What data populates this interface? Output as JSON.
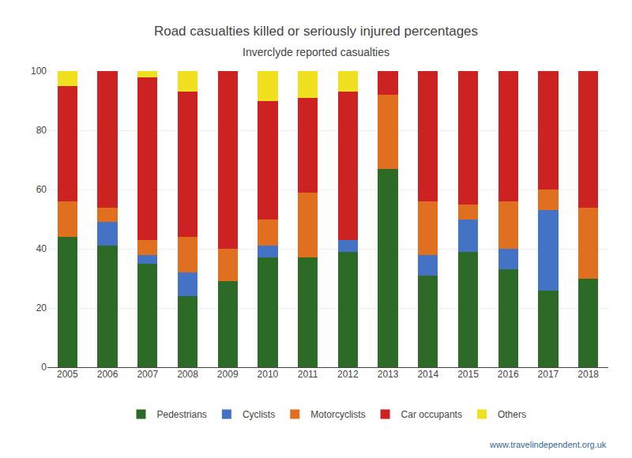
{
  "chart_data": {
    "type": "bar",
    "stacked": true,
    "title": "Road casualties killed or seriously injured percentages",
    "subtitle": "Inverclyde reported casualties",
    "categories": [
      "2005",
      "2006",
      "2007",
      "2008",
      "2009",
      "2010",
      "2011",
      "2012",
      "2013",
      "2014",
      "2015",
      "2016",
      "2017",
      "2018"
    ],
    "series": [
      {
        "name": "Pedestrians",
        "color": "#2d6a27",
        "values": [
          44,
          41,
          35,
          24,
          29,
          37,
          37,
          39,
          67,
          31,
          39,
          33,
          26,
          30
        ]
      },
      {
        "name": "Cyclists",
        "color": "#4472c4",
        "values": [
          0,
          8,
          3,
          8,
          0,
          4,
          0,
          4,
          0,
          7,
          11,
          7,
          27,
          0
        ]
      },
      {
        "name": "Motorcyclists",
        "color": "#e07020",
        "values": [
          12,
          5,
          5,
          12,
          11,
          9,
          22,
          0,
          25,
          18,
          5,
          16,
          7,
          24
        ]
      },
      {
        "name": "Car occupants",
        "color": "#cc2222",
        "values": [
          39,
          46,
          55,
          49,
          60,
          40,
          32,
          50,
          8,
          44,
          45,
          44,
          40,
          46
        ]
      },
      {
        "name": "Others",
        "color": "#f0e020",
        "values": [
          5,
          0,
          2,
          7,
          0,
          10,
          9,
          7,
          0,
          0,
          0,
          0,
          0,
          0
        ]
      }
    ],
    "ylim": [
      0,
      100
    ],
    "yticks": [
      0,
      20,
      40,
      60,
      80,
      100
    ],
    "grid": true,
    "legend": "bottom",
    "annotations": [
      "www.travelindependent.org.uk"
    ]
  }
}
